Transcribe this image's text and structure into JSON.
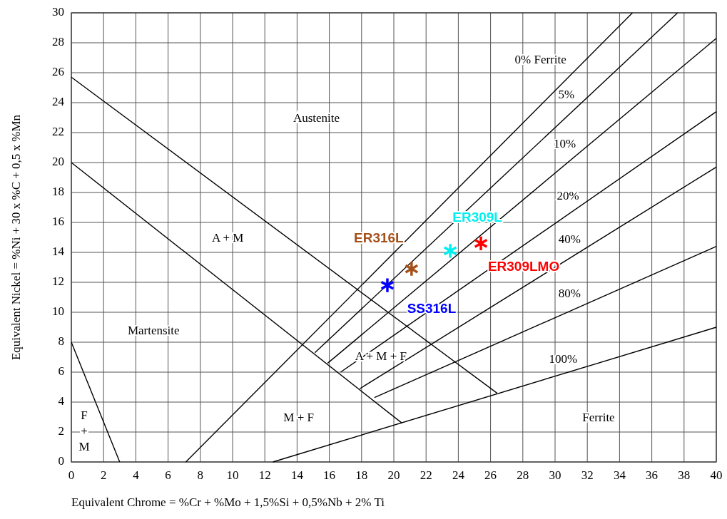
{
  "chart_data": {
    "type": "line",
    "xlabel": "Equivalent Chrome = %Cr + %Mo + 1,5%Si + 0,5%Nb + 2% Ti",
    "ylabel": "Equivalent Nickel = %Ni + 30 x %C + 0,5 x %Mn",
    "xlim": [
      0,
      40
    ],
    "ylim": [
      0,
      30
    ],
    "xticks": [
      0,
      2,
      4,
      6,
      8,
      10,
      12,
      14,
      16,
      18,
      20,
      22,
      24,
      26,
      28,
      30,
      32,
      34,
      36,
      38,
      40
    ],
    "yticks": [
      0,
      2,
      4,
      6,
      8,
      10,
      12,
      14,
      16,
      18,
      20,
      22,
      24,
      26,
      28,
      30
    ],
    "grid": true,
    "series": [
      {
        "color": "#000000",
        "x": [
          0,
          26.4
        ],
        "values": [
          25.7,
          4.6
        ]
      },
      {
        "color": "#000000",
        "x": [
          0,
          20.5
        ],
        "values": [
          20,
          2.6
        ]
      },
      {
        "color": "#000000",
        "x": [
          0,
          3
        ],
        "values": [
          8,
          0
        ]
      },
      {
        "color": "#000000",
        "x": [
          7.1,
          34.8
        ],
        "values": [
          0,
          30
        ]
      },
      {
        "color": "#000000",
        "x": [
          15.1,
          37.6
        ],
        "values": [
          7.3,
          30
        ]
      },
      {
        "color": "#000000",
        "x": [
          15.9,
          40
        ],
        "values": [
          6.6,
          28.3
        ]
      },
      {
        "color": "#000000",
        "x": [
          16.7,
          40
        ],
        "values": [
          6,
          23.4
        ]
      },
      {
        "color": "#000000",
        "x": [
          17.9,
          40
        ],
        "values": [
          4.9,
          19.7
        ]
      },
      {
        "color": "#000000",
        "x": [
          18.8,
          40
        ],
        "values": [
          4.3,
          14.4
        ]
      },
      {
        "color": "#000000",
        "x": [
          12.5,
          40
        ],
        "values": [
          0,
          9
        ]
      },
      {
        "type": "scatter",
        "marker": "cross",
        "name": "SS316L",
        "color": "#0000ff",
        "x": [
          19.6
        ],
        "values": [
          11.8
        ]
      },
      {
        "type": "scatter",
        "marker": "cross",
        "name": "ER316L",
        "color": "#a5501a",
        "x": [
          21.1
        ],
        "values": [
          12.9
        ]
      },
      {
        "type": "scatter",
        "marker": "cross",
        "name": "ER309L",
        "color": "#00f0f0",
        "x": [
          23.5
        ],
        "values": [
          14.1
        ]
      },
      {
        "type": "scatter",
        "marker": "cross",
        "name": "ER309LMO",
        "color": "#ff0000",
        "x": [
          25.4
        ],
        "values": [
          14.6
        ]
      }
    ],
    "annotations": [
      "Austenite",
      "A + M",
      "Martensite",
      "F\n+\nM",
      "M + F",
      "A + M + F",
      "Ferrite",
      "0% Ferrite",
      "5%",
      "10%",
      "20%",
      "40%",
      "80%",
      "100%"
    ]
  }
}
